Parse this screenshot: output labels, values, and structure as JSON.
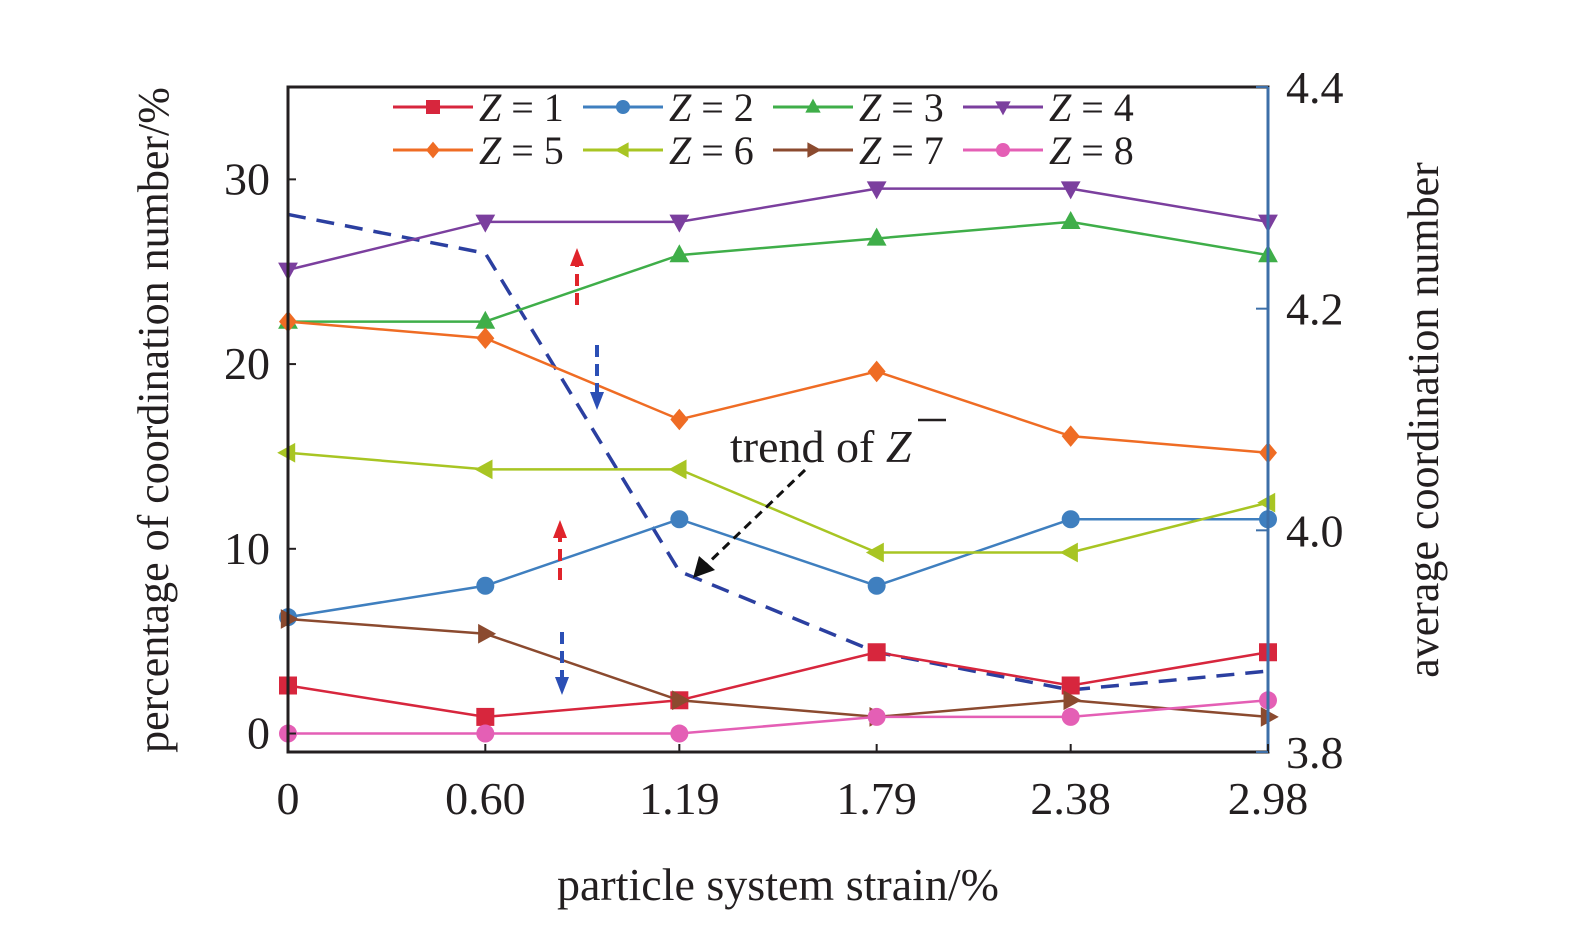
{
  "chart_data": {
    "type": "line",
    "xlabel": "particle system strain/%",
    "ylabel": "percentage of coordination number/%",
    "y2label": "average coordination number",
    "x": [
      0,
      0.6,
      1.19,
      1.79,
      2.38,
      2.98
    ],
    "x_tick_labels": [
      "0",
      "0.60",
      "1.19",
      "1.79",
      "2.38",
      "2.98"
    ],
    "y_ticks": [
      0,
      10,
      20,
      30
    ],
    "y2_ticks": [
      "3.8",
      "4.0",
      "4.2",
      "4.4"
    ],
    "ylim": [
      -1,
      35
    ],
    "y2lim": [
      3.8,
      4.4
    ],
    "grid": false,
    "legend_placement": "top",
    "series": [
      {
        "name": "Z = 1",
        "marker": "square",
        "color": "#d7263d",
        "values": [
          2.6,
          0.9,
          1.8,
          4.4,
          2.6,
          4.4
        ]
      },
      {
        "name": "Z = 2",
        "marker": "circle",
        "color": "#3f7fbf",
        "values": [
          6.3,
          8.0,
          11.6,
          8.0,
          11.6,
          11.6
        ]
      },
      {
        "name": "Z = 3",
        "marker": "triangle-up",
        "color": "#3fae49",
        "values": [
          22.3,
          22.3,
          25.9,
          26.8,
          27.7,
          25.9
        ]
      },
      {
        "name": "Z = 4",
        "marker": "triangle-down",
        "color": "#7b3f9e",
        "values": [
          25.1,
          27.7,
          27.7,
          29.5,
          29.5,
          27.7
        ]
      },
      {
        "name": "Z = 5",
        "marker": "diamond",
        "color": "#ef6c24",
        "values": [
          22.3,
          21.4,
          17.0,
          19.6,
          16.1,
          15.2
        ]
      },
      {
        "name": "Z = 6",
        "marker": "triangle-left",
        "color": "#a8c523",
        "values": [
          15.2,
          14.3,
          14.3,
          9.8,
          9.8,
          12.5
        ]
      },
      {
        "name": "Z = 7",
        "marker": "triangle-right",
        "color": "#8b4a2f",
        "values": [
          6.2,
          5.4,
          1.8,
          0.9,
          1.8,
          0.9
        ]
      },
      {
        "name": "Z = 8",
        "marker": "circle",
        "color": "#e45fb5",
        "values": [
          0,
          0,
          0,
          0.9,
          0.9,
          1.8
        ]
      }
    ],
    "average_series": {
      "axis": "right",
      "style": "dashed",
      "color": "#2b3fa0",
      "values": [
        4.285,
        4.25,
        3.963,
        3.89,
        3.856,
        3.873
      ]
    },
    "annotation": {
      "text_prefix": "trend of ",
      "text_symbol": "Z"
    },
    "colors": {
      "up_arrow": "#e0242b",
      "down_arrow": "#2b4fb5",
      "right_axis": "#3d6fa8"
    }
  }
}
